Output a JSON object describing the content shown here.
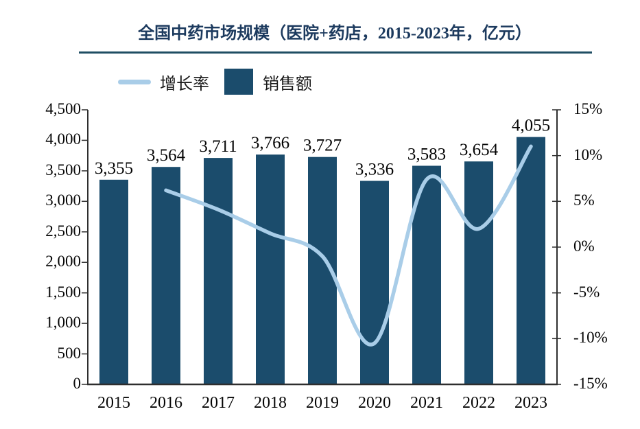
{
  "title": "全国中药市场规模（医院+药店，2015-2023年，亿元）",
  "legend": {
    "items": [
      {
        "label": "增长率",
        "type": "line",
        "color": "#a9cde8"
      },
      {
        "label": "销售额",
        "type": "bar",
        "color": "#1b4c6c"
      }
    ]
  },
  "colors": {
    "bar": "#1b4c6c",
    "line": "#a9cde8",
    "axis": "#2e2e2e",
    "title_text": "#1c3a5e",
    "title_rule": "#1f4e63",
    "label_text": "#050505"
  },
  "chart_data": {
    "type": "bar",
    "categories": [
      "2015",
      "2016",
      "2017",
      "2018",
      "2019",
      "2020",
      "2021",
      "2022",
      "2023"
    ],
    "series": [
      {
        "name": "销售额",
        "type": "bar",
        "axis": "left",
        "values": [
          3355,
          3564,
          3711,
          3766,
          3727,
          3336,
          3583,
          3654,
          4055
        ],
        "data_labels": [
          "3,355",
          "3,564",
          "3,711",
          "3,766",
          "3,727",
          "3,336",
          "3,583",
          "3,654",
          "4,055"
        ],
        "color": "#1b4c6c"
      },
      {
        "name": "增长率",
        "type": "line",
        "axis": "right",
        "values": [
          null,
          6.2,
          4.1,
          1.5,
          -1.0,
          -10.5,
          7.4,
          2.0,
          11.0
        ],
        "color": "#a9cde8"
      }
    ],
    "title": "全国中药市场规模（医院+药店，2015-2023年，亿元）",
    "xlabel": "",
    "ylabel_left": "",
    "ylabel_right": "",
    "left_axis": {
      "min": 0,
      "max": 4500,
      "step": 500,
      "tick_labels": [
        "0",
        "500",
        "1,000",
        "1,500",
        "2,000",
        "2,500",
        "3,000",
        "3,500",
        "4,000",
        "4,500"
      ]
    },
    "right_axis": {
      "min": -15,
      "max": 15,
      "step": 5,
      "tick_labels": [
        "-15%",
        "-10%",
        "-5%",
        "0%",
        "5%",
        "10%",
        "15%"
      ]
    },
    "grid": false,
    "legend_position": "top-left"
  }
}
